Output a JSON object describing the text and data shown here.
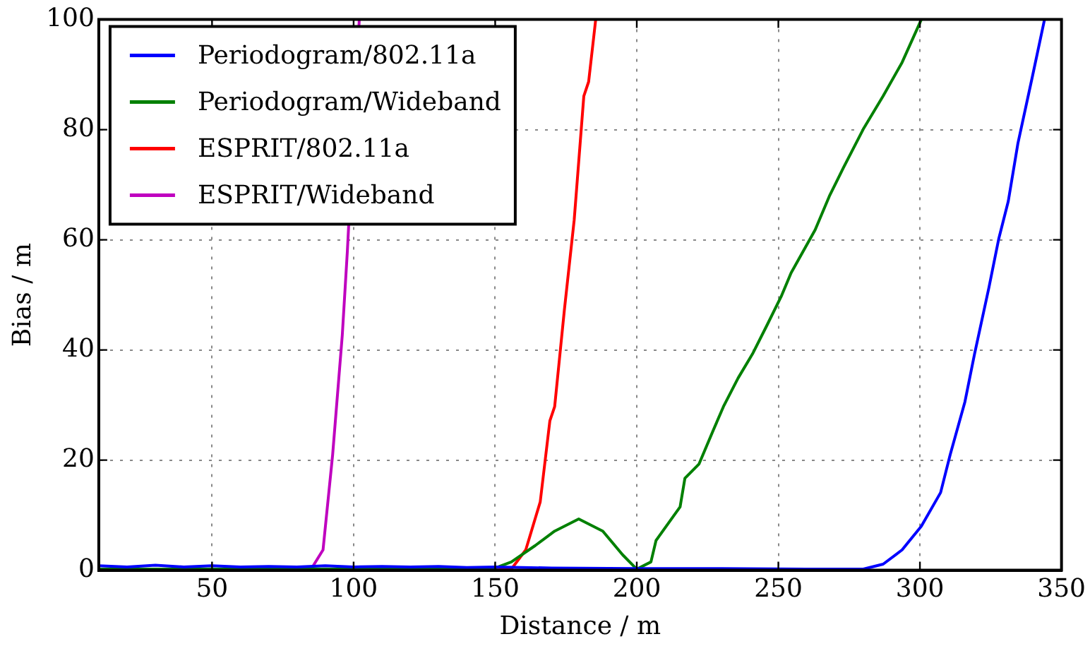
{
  "chart_data": {
    "type": "line",
    "xlabel": "Distance / m",
    "ylabel": "Bias / m",
    "xlim": [
      10,
      350
    ],
    "xticks": [
      50,
      100,
      150,
      200,
      250,
      300,
      350
    ],
    "ylim": [
      0,
      100
    ],
    "yticks": [
      0,
      20,
      40,
      60,
      80,
      100
    ],
    "grid": true,
    "legend": "top left",
    "marker": "none",
    "line_style": "solid",
    "series": [
      {
        "name": "Periodogram/802.11a",
        "color": "#0000ff",
        "x": [
          10,
          20,
          30,
          40,
          50,
          60,
          70,
          80,
          90,
          100,
          110,
          120,
          130,
          140,
          150,
          170,
          200,
          230,
          260,
          275,
          280,
          287,
          293.7,
          300.5,
          307.3,
          310.7,
          315.9,
          319.3,
          324.4,
          327.8,
          331.2,
          334.6,
          339.7,
          344
        ],
        "values": [
          0.8,
          0.6,
          0.9,
          0.6,
          0.8,
          0.6,
          0.7,
          0.6,
          0.8,
          0.6,
          0.7,
          0.6,
          0.7,
          0.5,
          0.6,
          0.4,
          0.3,
          0.3,
          0.2,
          0.2,
          0.2,
          1.1,
          3.7,
          8,
          14.1,
          21,
          30.6,
          39.3,
          51.4,
          60.1,
          67,
          77.5,
          89.6,
          100
        ]
      },
      {
        "name": "Periodogram/Wideband",
        "color": "#008000",
        "x": [
          10,
          148.9,
          155.7,
          164.2,
          171,
          179.5,
          188,
          195,
          200,
          205,
          206.8,
          215.3,
          217,
          222,
          227,
          230.6,
          235.8,
          240.9,
          246,
          251,
          254.5,
          263,
          268,
          273,
          280,
          287,
          293.7,
          300.5
        ],
        "values": [
          0.2,
          0.2,
          1.5,
          4.5,
          7.1,
          9.3,
          7.1,
          2.8,
          0.2,
          1.5,
          5.4,
          11.5,
          16.7,
          19.3,
          25.4,
          29.7,
          34.9,
          39.3,
          44.5,
          49.7,
          54,
          61.8,
          67.9,
          73.1,
          80.1,
          86.1,
          92.2,
          100
        ]
      },
      {
        "name": "ESPRIT/802.11a",
        "color": "#ff0000",
        "x": [
          150,
          155.7,
          160.8,
          165.9,
          169.3,
          171,
          174.4,
          177.9,
          181.3,
          183,
          185.5
        ],
        "values": [
          0,
          0.2,
          3.7,
          12.4,
          27.1,
          29.7,
          47.1,
          63.6,
          86.1,
          88.7,
          100
        ]
      },
      {
        "name": "ESPRIT/Wideband",
        "color": "#bf00bf",
        "x": [
          80,
          85,
          89.2,
          92.6,
          96,
          97.8,
          102
        ],
        "values": [
          0,
          0.2,
          3.7,
          21,
          42.7,
          58,
          100
        ]
      }
    ]
  }
}
